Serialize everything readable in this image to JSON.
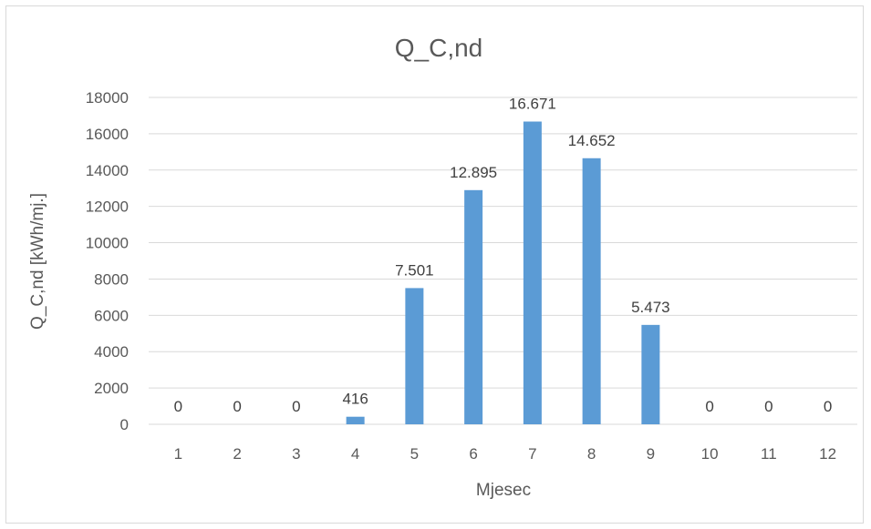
{
  "chart_data": {
    "type": "bar",
    "title": "Q_C,nd",
    "xlabel": "Mjesec",
    "ylabel": "Q_C,nd [kWh/mj.]",
    "categories": [
      "1",
      "2",
      "3",
      "4",
      "5",
      "6",
      "7",
      "8",
      "9",
      "10",
      "11",
      "12"
    ],
    "values": [
      0,
      0,
      0,
      416,
      7501,
      12895,
      16671,
      14652,
      5473,
      0,
      0,
      0
    ],
    "data_labels": [
      "0",
      "0",
      "0",
      "416",
      "7.501",
      "12.895",
      "16.671",
      "14.652",
      "5.473",
      "0",
      "0",
      "0"
    ],
    "yticks": [
      0,
      2000,
      4000,
      6000,
      8000,
      10000,
      12000,
      14000,
      16000,
      18000
    ],
    "ylim": [
      0,
      18000
    ],
    "grid": true,
    "legend": "none",
    "colors": {
      "bar": "#5b9bd5",
      "grid": "#d9d9d9",
      "text": "#595959"
    }
  }
}
